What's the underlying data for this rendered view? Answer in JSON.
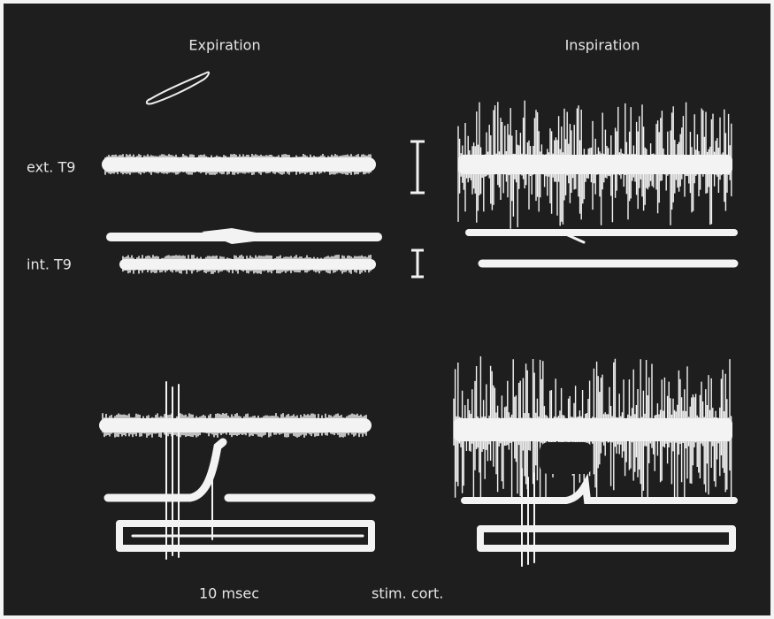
{
  "panels": {
    "left_title": "Expiration",
    "right_title": "Inspiration"
  },
  "trace_labels": {
    "external": "ext. T9",
    "internal": "int. T9"
  },
  "footer": {
    "time_scale": "10 msec",
    "stimulus": "stim. cort."
  }
}
